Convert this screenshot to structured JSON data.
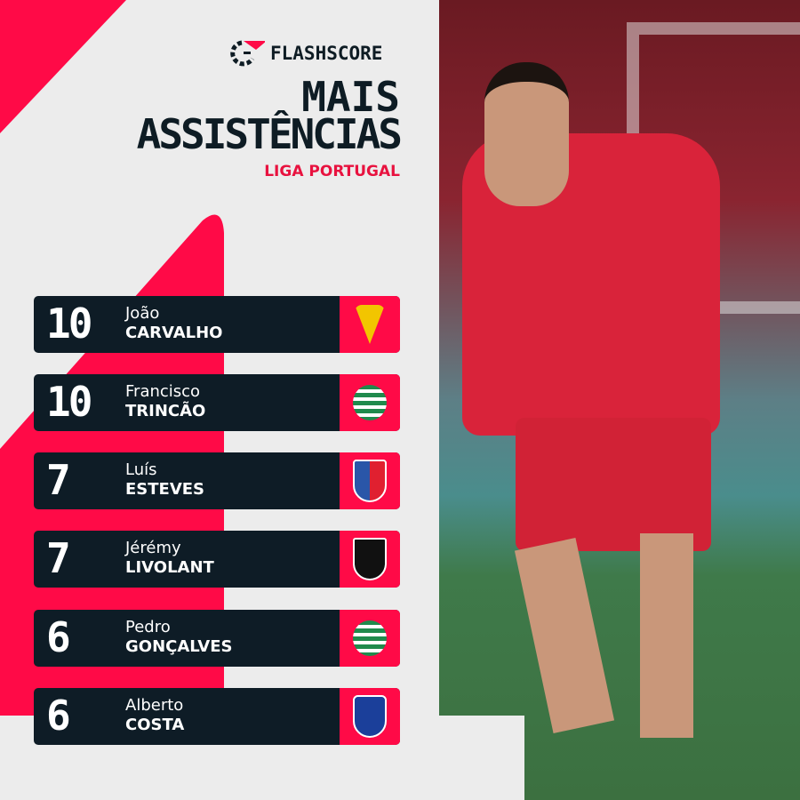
{
  "brand": {
    "name": "FLASHSCORE",
    "accent": "#ff0a47",
    "dark": "#0e1c26"
  },
  "header": {
    "title_line1": "MAIS",
    "title_line2": "ASSISTÊNCIAS",
    "subtitle": "LIGA PORTUGAL"
  },
  "rows": [
    {
      "value": "10",
      "first": "João",
      "last": "CARVALHO",
      "club_icon": "estoril-crest",
      "crest_color": "#f2c500"
    },
    {
      "value": "10",
      "first": "Francisco",
      "last": "TRINCÃO",
      "club_icon": "sporting-crest",
      "crest_color": "#1f8a4c"
    },
    {
      "value": "7",
      "first": "Luís",
      "last": "ESTEVES",
      "club_icon": "gil-vicente-crest",
      "crest_color": "#2a56a8"
    },
    {
      "value": "7",
      "first": "Jérémy",
      "last": "LIVOLANT",
      "club_icon": "casa-pia-crest",
      "crest_color": "#111111"
    },
    {
      "value": "6",
      "first": "Pedro",
      "last": "GONÇALVES",
      "club_icon": "sporting-crest",
      "crest_color": "#1f8a4c"
    },
    {
      "value": "6",
      "first": "Alberto",
      "last": "COSTA",
      "club_icon": "porto-crest",
      "crest_color": "#1b3f9a"
    }
  ]
}
